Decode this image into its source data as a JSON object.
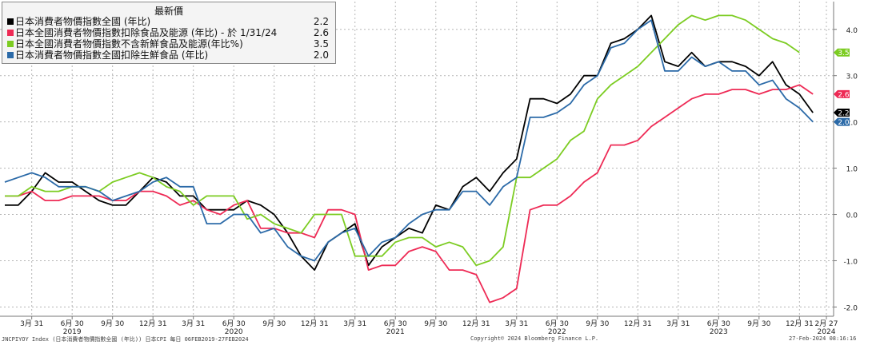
{
  "legend": {
    "header": "最新價",
    "series": [
      {
        "label": "日本消費者物價指數全國 (年比)",
        "value": "2.2",
        "color": "#000000"
      },
      {
        "label": "日本全國消費者物價指數扣除食品及能源 (年比) -  於 1/31/24",
        "value": "2.6",
        "color": "#ee2a55"
      },
      {
        "label": "日本全國消費者物價指數不含新鮮食品及能源(年比%)",
        "value": "3.5",
        "color": "#7ccc22"
      },
      {
        "label": "日本消費者物價指數全國扣除生鮮食品 (年比)",
        "value": "2.0",
        "color": "#2b6aa8"
      }
    ]
  },
  "footer": {
    "left": "JNCPIYOY Index (日本消費者物價指數全國 (年比)) 日本CPI  每日 06FEB2019-27FEB2024",
    "center": "Copyright© 2024 Bloomberg Finance L.P.",
    "right": "27-Feb-2024 08:16:16"
  },
  "chart_data": {
    "type": "line",
    "x_start": "2019-01",
    "xlim": [
      "2019-01",
      "2024-02"
    ],
    "ylim": [
      -2.2,
      4.6
    ],
    "y_ticks": [
      "4.0",
      "3.0",
      "2.0",
      "1.0",
      "0.0",
      "-1.0",
      "-2.0"
    ],
    "y_tick_values": [
      4,
      3,
      2,
      1,
      0,
      -1,
      -2
    ],
    "x_ticks": [
      {
        "label": "3月 31",
        "date": "2019-03"
      },
      {
        "label": "6月 30",
        "date": "2019-06"
      },
      {
        "label": "9月 30",
        "date": "2019-09"
      },
      {
        "label": "12月 31",
        "date": "2019-12"
      },
      {
        "label": "3月 31",
        "date": "2020-03"
      },
      {
        "label": "6月 30",
        "date": "2020-06"
      },
      {
        "label": "9月 30",
        "date": "2020-09"
      },
      {
        "label": "12月 31",
        "date": "2020-12"
      },
      {
        "label": "3月 31",
        "date": "2021-03"
      },
      {
        "label": "6月 30",
        "date": "2021-06"
      },
      {
        "label": "9月 30",
        "date": "2021-09"
      },
      {
        "label": "12月 31",
        "date": "2021-12"
      },
      {
        "label": "3月 31",
        "date": "2022-03"
      },
      {
        "label": "6月 30",
        "date": "2022-06"
      },
      {
        "label": "9月 30",
        "date": "2022-09"
      },
      {
        "label": "12月 31",
        "date": "2022-12"
      },
      {
        "label": "3月 31",
        "date": "2023-03"
      },
      {
        "label": "6月 30",
        "date": "2023-06"
      },
      {
        "label": "9月 30",
        "date": "2023-09"
      },
      {
        "label": "12月 31",
        "date": "2023-12"
      },
      {
        "label": "2月 27",
        "date": "2024-02"
      }
    ],
    "year_labels": [
      {
        "label": "2019",
        "date": "2019-06"
      },
      {
        "label": "2020",
        "date": "2020-06"
      },
      {
        "label": "2021",
        "date": "2021-06"
      },
      {
        "label": "2022",
        "date": "2022-06"
      },
      {
        "label": "2023",
        "date": "2023-06"
      },
      {
        "label": "2024",
        "date": "2024-02"
      }
    ],
    "grid": true,
    "legend_position": "top-left",
    "series": [
      {
        "name": "日本消費者物價指數全國 (年比)",
        "color": "#000000",
        "last_label": "2.2",
        "values": [
          0.2,
          0.2,
          0.5,
          0.9,
          0.7,
          0.7,
          0.5,
          0.3,
          0.2,
          0.2,
          0.5,
          0.8,
          0.7,
          0.4,
          0.4,
          0.1,
          0.1,
          0.1,
          0.3,
          0.2,
          0.0,
          -0.4,
          -0.9,
          -1.2,
          -0.6,
          -0.4,
          -0.2,
          -1.1,
          -0.7,
          -0.5,
          -0.3,
          -0.4,
          0.2,
          0.1,
          0.6,
          0.8,
          0.5,
          0.9,
          1.2,
          2.5,
          2.5,
          2.4,
          2.6,
          3.0,
          3.0,
          3.7,
          3.8,
          4.0,
          4.3,
          3.3,
          3.2,
          3.5,
          3.2,
          3.3,
          3.3,
          3.2,
          3.0,
          3.3,
          2.8,
          2.6,
          2.2
        ]
      },
      {
        "name": "日本全國消費者物價指數扣除食品及能源 (年比) -  於 1/31/24",
        "color": "#ee2a55",
        "last_label": "2.6",
        "values": [
          0.4,
          0.4,
          0.5,
          0.3,
          0.3,
          0.4,
          0.4,
          0.4,
          0.3,
          0.3,
          0.5,
          0.5,
          0.4,
          0.2,
          0.3,
          0.1,
          0.0,
          0.2,
          0.3,
          -0.3,
          -0.3,
          -0.4,
          -0.4,
          -0.5,
          0.1,
          0.1,
          0.0,
          -1.2,
          -1.1,
          -1.1,
          -0.8,
          -0.7,
          -0.8,
          -1.2,
          -1.2,
          -1.3,
          -1.9,
          -1.8,
          -1.6,
          0.1,
          0.2,
          0.2,
          0.4,
          0.7,
          0.9,
          1.5,
          1.5,
          1.6,
          1.9,
          2.1,
          2.3,
          2.5,
          2.6,
          2.6,
          2.7,
          2.7,
          2.6,
          2.7,
          2.7,
          2.8,
          2.6
        ]
      },
      {
        "name": "日本全國消費者物價指數不含新鮮食品及能源(年比%)",
        "color": "#7ccc22",
        "last_label": "3.5",
        "values": [
          0.4,
          0.4,
          0.6,
          0.5,
          0.5,
          0.6,
          0.6,
          0.5,
          0.7,
          0.8,
          0.9,
          0.8,
          0.6,
          0.5,
          0.2,
          0.4,
          0.4,
          0.4,
          -0.1,
          0.0,
          -0.2,
          -0.3,
          -0.4,
          0.0,
          0.0,
          0.0,
          -0.9,
          -0.9,
          -0.9,
          -0.6,
          -0.5,
          -0.5,
          -0.7,
          -0.6,
          -0.7,
          -1.1,
          -1.0,
          -0.7,
          0.8,
          0.8,
          1.0,
          1.2,
          1.6,
          1.8,
          2.5,
          2.8,
          3.0,
          3.2,
          3.5,
          3.8,
          4.1,
          4.3,
          4.2,
          4.3,
          4.3,
          4.2,
          4.0,
          3.8,
          3.7,
          3.5
        ]
      },
      {
        "name": "日本消費者物價指數全國扣除生鮮食品 (年比)",
        "color": "#2b6aa8",
        "last_label": "2.0",
        "values": [
          0.7,
          0.8,
          0.9,
          0.8,
          0.6,
          0.6,
          0.6,
          0.5,
          0.3,
          0.4,
          0.5,
          0.7,
          0.8,
          0.6,
          0.6,
          -0.2,
          -0.2,
          0.0,
          0.0,
          -0.4,
          -0.3,
          -0.7,
          -0.9,
          -1.0,
          -0.6,
          -0.4,
          -0.3,
          -0.9,
          -0.6,
          -0.5,
          -0.2,
          0.0,
          0.1,
          0.1,
          0.5,
          0.5,
          0.2,
          0.6,
          0.8,
          2.1,
          2.1,
          2.2,
          2.4,
          2.8,
          3.0,
          3.6,
          3.7,
          4.0,
          4.2,
          3.1,
          3.1,
          3.4,
          3.2,
          3.3,
          3.1,
          3.1,
          2.8,
          2.9,
          2.5,
          2.3,
          2.0
        ]
      }
    ]
  }
}
